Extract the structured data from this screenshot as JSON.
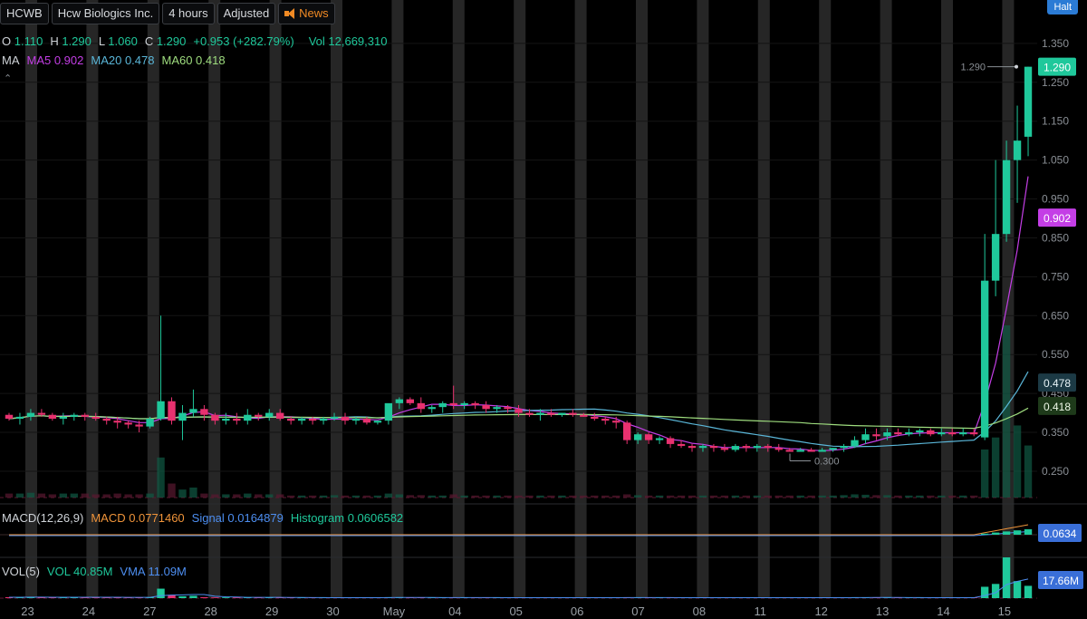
{
  "header": {
    "symbol": "HCWB",
    "company": "Hcw Biologics Inc.",
    "interval": "4 hours",
    "adjust": "Adjusted",
    "news": "News",
    "halt": "Halt"
  },
  "ohlc": {
    "o_label": "O",
    "o": "1.110",
    "h_label": "H",
    "h": "1.290",
    "l_label": "L",
    "l": "1.060",
    "c_label": "C",
    "c": "1.290",
    "change": "+0.953 (+282.79%)",
    "vol_label": "Vol",
    "vol": "12,669,310"
  },
  "ma_legend": {
    "label": "MA",
    "ma5": "MA5 0.902",
    "ma20": "MA20 0.478",
    "ma60": "MA60 0.418"
  },
  "macd_legend": {
    "label": "MACD(12,26,9)",
    "macd": "MACD 0.0771460",
    "signal": "Signal 0.0164879",
    "hist": "Histogram 0.0606582",
    "tag": "0.0634"
  },
  "vol_legend": {
    "label": "VOL(5)",
    "vol": "VOL 40.85M",
    "vma": "VMA 11.09M",
    "tag": "17.66M"
  },
  "colors": {
    "up": "#1fc89b",
    "down": "#e8316f",
    "ma5": "#c43ee6",
    "ma20": "#5ab6d8",
    "ma60": "#9edc7e",
    "macd": "#f0943a",
    "signal": "#4d8ef0",
    "vma": "#4d8ef0",
    "band": "#262626"
  },
  "chart_data": {
    "type": "candlestick",
    "price_ticks": [
      "1.350",
      "1.250",
      "1.150",
      "1.050",
      "0.950",
      "0.850",
      "0.750",
      "0.650",
      "0.550",
      "0.450",
      "0.350",
      "0.250"
    ],
    "price_range": [
      0.18,
      1.38
    ],
    "x_labels": [
      "23",
      "24",
      "27",
      "28",
      "29",
      "30",
      "May",
      "04",
      "05",
      "06",
      "07",
      "08",
      "11",
      "12",
      "13",
      "14",
      "15"
    ],
    "candles": [
      [
        0.395,
        0.4,
        0.38,
        0.385
      ],
      [
        0.385,
        0.4,
        0.37,
        0.39
      ],
      [
        0.39,
        0.41,
        0.38,
        0.4
      ],
      [
        0.4,
        0.41,
        0.39,
        0.395
      ],
      [
        0.395,
        0.4,
        0.38,
        0.385
      ],
      [
        0.385,
        0.4,
        0.37,
        0.39
      ],
      [
        0.39,
        0.4,
        0.38,
        0.395
      ],
      [
        0.395,
        0.4,
        0.38,
        0.39
      ],
      [
        0.39,
        0.4,
        0.38,
        0.385
      ],
      [
        0.385,
        0.39,
        0.37,
        0.38
      ],
      [
        0.38,
        0.39,
        0.36,
        0.375
      ],
      [
        0.375,
        0.38,
        0.36,
        0.37
      ],
      [
        0.37,
        0.38,
        0.35,
        0.365
      ],
      [
        0.365,
        0.39,
        0.36,
        0.385
      ],
      [
        0.385,
        0.65,
        0.38,
        0.43
      ],
      [
        0.43,
        0.44,
        0.37,
        0.38
      ],
      [
        0.38,
        0.42,
        0.33,
        0.4
      ],
      [
        0.4,
        0.46,
        0.39,
        0.41
      ],
      [
        0.41,
        0.42,
        0.38,
        0.395
      ],
      [
        0.395,
        0.4,
        0.37,
        0.38
      ],
      [
        0.38,
        0.4,
        0.37,
        0.385
      ],
      [
        0.385,
        0.4,
        0.37,
        0.38
      ],
      [
        0.38,
        0.41,
        0.37,
        0.395
      ],
      [
        0.395,
        0.4,
        0.38,
        0.39
      ],
      [
        0.39,
        0.41,
        0.38,
        0.4
      ],
      [
        0.4,
        0.41,
        0.38,
        0.385
      ],
      [
        0.385,
        0.39,
        0.37,
        0.38
      ],
      [
        0.38,
        0.39,
        0.37,
        0.385
      ],
      [
        0.385,
        0.39,
        0.37,
        0.38
      ],
      [
        0.38,
        0.39,
        0.37,
        0.385
      ],
      [
        0.385,
        0.4,
        0.38,
        0.39
      ],
      [
        0.39,
        0.4,
        0.37,
        0.38
      ],
      [
        0.38,
        0.39,
        0.37,
        0.385
      ],
      [
        0.385,
        0.39,
        0.37,
        0.375
      ],
      [
        0.375,
        0.38,
        0.37,
        0.38
      ],
      [
        0.38,
        0.42,
        0.37,
        0.425
      ],
      [
        0.425,
        0.44,
        0.41,
        0.435
      ],
      [
        0.435,
        0.44,
        0.42,
        0.425
      ],
      [
        0.425,
        0.44,
        0.4,
        0.41
      ],
      [
        0.41,
        0.42,
        0.4,
        0.415
      ],
      [
        0.415,
        0.43,
        0.4,
        0.425
      ],
      [
        0.425,
        0.47,
        0.41,
        0.42
      ],
      [
        0.42,
        0.43,
        0.41,
        0.425
      ],
      [
        0.425,
        0.43,
        0.41,
        0.42
      ],
      [
        0.42,
        0.43,
        0.4,
        0.41
      ],
      [
        0.41,
        0.42,
        0.4,
        0.415
      ],
      [
        0.415,
        0.42,
        0.4,
        0.41
      ],
      [
        0.41,
        0.42,
        0.39,
        0.4
      ],
      [
        0.4,
        0.41,
        0.39,
        0.395
      ],
      [
        0.395,
        0.41,
        0.38,
        0.4
      ],
      [
        0.4,
        0.41,
        0.39,
        0.395
      ],
      [
        0.395,
        0.4,
        0.39,
        0.4
      ],
      [
        0.4,
        0.41,
        0.39,
        0.395
      ],
      [
        0.395,
        0.4,
        0.39,
        0.39
      ],
      [
        0.39,
        0.4,
        0.38,
        0.385
      ],
      [
        0.385,
        0.39,
        0.37,
        0.38
      ],
      [
        0.38,
        0.39,
        0.36,
        0.375
      ],
      [
        0.375,
        0.38,
        0.32,
        0.33
      ],
      [
        0.33,
        0.35,
        0.32,
        0.345
      ],
      [
        0.345,
        0.35,
        0.32,
        0.33
      ],
      [
        0.33,
        0.34,
        0.32,
        0.335
      ],
      [
        0.335,
        0.34,
        0.31,
        0.32
      ],
      [
        0.32,
        0.33,
        0.31,
        0.315
      ],
      [
        0.315,
        0.32,
        0.3,
        0.31
      ],
      [
        0.31,
        0.32,
        0.3,
        0.315
      ],
      [
        0.315,
        0.32,
        0.3,
        0.31
      ],
      [
        0.31,
        0.32,
        0.3,
        0.305
      ],
      [
        0.305,
        0.32,
        0.3,
        0.315
      ],
      [
        0.315,
        0.32,
        0.3,
        0.31
      ],
      [
        0.31,
        0.32,
        0.3,
        0.315
      ],
      [
        0.315,
        0.32,
        0.3,
        0.31
      ],
      [
        0.31,
        0.32,
        0.3,
        0.305
      ],
      [
        0.305,
        0.31,
        0.3,
        0.3
      ],
      [
        0.3,
        0.31,
        0.3,
        0.305
      ],
      [
        0.305,
        0.31,
        0.3,
        0.3
      ],
      [
        0.3,
        0.31,
        0.3,
        0.305
      ],
      [
        0.305,
        0.31,
        0.3,
        0.31
      ],
      [
        0.31,
        0.32,
        0.3,
        0.315
      ],
      [
        0.315,
        0.34,
        0.31,
        0.33
      ],
      [
        0.33,
        0.36,
        0.32,
        0.345
      ],
      [
        0.345,
        0.36,
        0.33,
        0.34
      ],
      [
        0.34,
        0.36,
        0.33,
        0.35
      ],
      [
        0.35,
        0.36,
        0.34,
        0.345
      ],
      [
        0.345,
        0.36,
        0.34,
        0.35
      ],
      [
        0.35,
        0.36,
        0.34,
        0.355
      ],
      [
        0.355,
        0.36,
        0.34,
        0.345
      ],
      [
        0.345,
        0.36,
        0.34,
        0.35
      ],
      [
        0.35,
        0.36,
        0.34,
        0.345
      ],
      [
        0.345,
        0.36,
        0.34,
        0.35
      ],
      [
        0.35,
        0.36,
        0.34,
        0.345
      ],
      [
        0.337,
        0.86,
        0.33,
        0.74
      ],
      [
        0.74,
        1.05,
        0.7,
        0.86
      ],
      [
        0.86,
        1.1,
        0.84,
        1.05
      ],
      [
        1.05,
        1.19,
        0.94,
        1.1
      ],
      [
        1.11,
        1.29,
        1.06,
        1.29
      ]
    ],
    "ma_values": {
      "ma5": 0.902,
      "ma20": 0.478,
      "ma60": 0.418
    },
    "annotations": {
      "high_label": "1.290",
      "low_label": "0.300",
      "last_price": "1.290"
    },
    "volume_relative": [
      0.1,
      0.1,
      0.12,
      0.1,
      0.08,
      0.1,
      0.1,
      0.1,
      0.08,
      0.08,
      0.1,
      0.08,
      0.08,
      0.1,
      1.0,
      0.35,
      0.2,
      0.25,
      0.1,
      0.08,
      0.08,
      0.08,
      0.1,
      0.08,
      0.08,
      0.08,
      0.05,
      0.05,
      0.05,
      0.05,
      0.06,
      0.05,
      0.05,
      0.05,
      0.05,
      0.1,
      0.08,
      0.06,
      0.06,
      0.05,
      0.05,
      0.08,
      0.05,
      0.05,
      0.05,
      0.05,
      0.05,
      0.05,
      0.05,
      0.05,
      0.05,
      0.05,
      0.05,
      0.05,
      0.05,
      0.05,
      0.05,
      0.08,
      0.06,
      0.05,
      0.05,
      0.05,
      0.05,
      0.05,
      0.05,
      0.05,
      0.05,
      0.05,
      0.05,
      0.05,
      0.05,
      0.05,
      0.05,
      0.05,
      0.05,
      0.05,
      0.05,
      0.06,
      0.08,
      0.07,
      0.06,
      0.06,
      0.05,
      0.05,
      0.05,
      0.05,
      0.05,
      0.05,
      0.05,
      0.05,
      1.2,
      1.5,
      4.3,
      1.8,
      1.3
    ]
  }
}
